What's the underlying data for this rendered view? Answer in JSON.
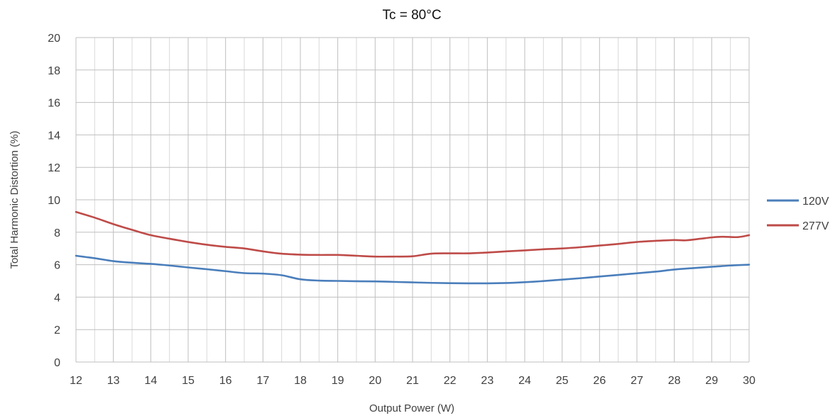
{
  "chart_data": {
    "type": "line",
    "title": "Tc = 80°C",
    "xlabel": "Output Power (W)",
    "ylabel": "Total Harmonic Distortion (%)",
    "xlim": [
      12,
      30
    ],
    "ylim": [
      0,
      20
    ],
    "x_ticks": [
      12,
      13,
      14,
      15,
      16,
      17,
      18,
      19,
      20,
      21,
      22,
      23,
      24,
      25,
      26,
      27,
      28,
      29,
      30
    ],
    "y_ticks": [
      0,
      2,
      4,
      6,
      8,
      10,
      12,
      14,
      16,
      18,
      20
    ],
    "grid": true,
    "legend_position": "right",
    "series": [
      {
        "name": "120V",
        "color": "#4a7ebb",
        "x": [
          12,
          12.5,
          13,
          13.5,
          14,
          14.5,
          15,
          15.5,
          16,
          16.5,
          17,
          17.5,
          18,
          18.5,
          19,
          19.5,
          20,
          20.5,
          21,
          21.5,
          22,
          22.5,
          23,
          23.5,
          24,
          24.5,
          25,
          25.5,
          26,
          26.5,
          27,
          27.5,
          28,
          28.5,
          29,
          29.5,
          30
        ],
        "y": [
          6.55,
          6.4,
          6.22,
          6.12,
          6.05,
          5.95,
          5.83,
          5.72,
          5.6,
          5.48,
          5.45,
          5.35,
          5.1,
          5.02,
          5.0,
          4.98,
          4.97,
          4.94,
          4.91,
          4.88,
          4.86,
          4.85,
          4.85,
          4.87,
          4.92,
          4.99,
          5.08,
          5.17,
          5.27,
          5.37,
          5.47,
          5.57,
          5.7,
          5.79,
          5.87,
          5.95,
          6.0
        ]
      },
      {
        "name": "277V",
        "color": "#be4b48",
        "x": [
          12,
          12.5,
          13,
          13.5,
          14,
          14.5,
          15,
          15.5,
          16,
          16.5,
          17,
          17.5,
          18,
          18.5,
          19,
          19.5,
          20,
          20.5,
          21,
          21.5,
          22,
          22.5,
          23,
          23.5,
          24,
          24.5,
          25,
          25.5,
          26,
          26.5,
          27,
          27.5,
          28,
          28.3,
          28.7,
          29,
          29.3,
          29.7,
          30
        ],
        "y": [
          9.25,
          8.9,
          8.5,
          8.15,
          7.82,
          7.6,
          7.4,
          7.23,
          7.1,
          7.0,
          6.82,
          6.68,
          6.62,
          6.6,
          6.6,
          6.55,
          6.5,
          6.5,
          6.52,
          6.68,
          6.7,
          6.7,
          6.75,
          6.82,
          6.88,
          6.95,
          7.0,
          7.08,
          7.18,
          7.28,
          7.4,
          7.47,
          7.52,
          7.5,
          7.6,
          7.68,
          7.72,
          7.7,
          7.82
        ]
      }
    ]
  }
}
